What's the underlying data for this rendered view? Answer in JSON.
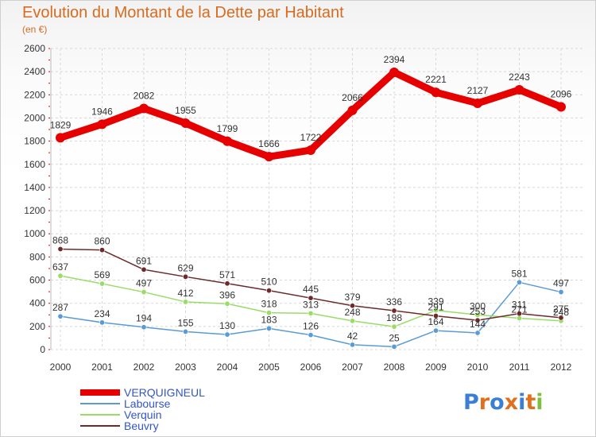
{
  "title": "Evolution du Montant de la Dette par Habitant",
  "unit": "(en €)",
  "logo": {
    "text": "Proxiti",
    "letter_colors": [
      "#3a7fd5",
      "#e0701d",
      "#3a7fd5",
      "#e0701d",
      "#3a7fd5",
      "#e0701d",
      "#7fbf3f"
    ]
  },
  "chart_data": {
    "type": "line",
    "x": [
      "2000",
      "2001",
      "2002",
      "2003",
      "2004",
      "2005",
      "2006",
      "2007",
      "2008",
      "2009",
      "2010",
      "2011",
      "2012"
    ],
    "ylim": [
      0,
      2600
    ],
    "yticks": [
      0,
      200,
      400,
      600,
      800,
      1000,
      1200,
      1400,
      1600,
      1800,
      2000,
      2200,
      2400,
      2600
    ],
    "grid": true,
    "legend_position": "bottom-left",
    "series": [
      {
        "name": "VERQUIGNEUL",
        "color": "#e60000",
        "values": [
          1829,
          1946,
          2082,
          1955,
          1799,
          1666,
          1722,
          2066,
          2394,
          2221,
          2127,
          2243,
          2096
        ]
      },
      {
        "name": "Labourse",
        "color": "#5b9bd5",
        "values": [
          287,
          234,
          194,
          155,
          130,
          183,
          126,
          42,
          25,
          164,
          144,
          581,
          497
        ]
      },
      {
        "name": "Verquin",
        "color": "#99dd66",
        "values": [
          637,
          569,
          497,
          412,
          396,
          318,
          313,
          248,
          198,
          339,
          300,
          271,
          248
        ]
      },
      {
        "name": "Beuvry",
        "color": "#6e2a2a",
        "values": [
          868,
          860,
          691,
          629,
          571,
          510,
          445,
          379,
          336,
          291,
          253,
          311,
          275
        ]
      }
    ]
  }
}
